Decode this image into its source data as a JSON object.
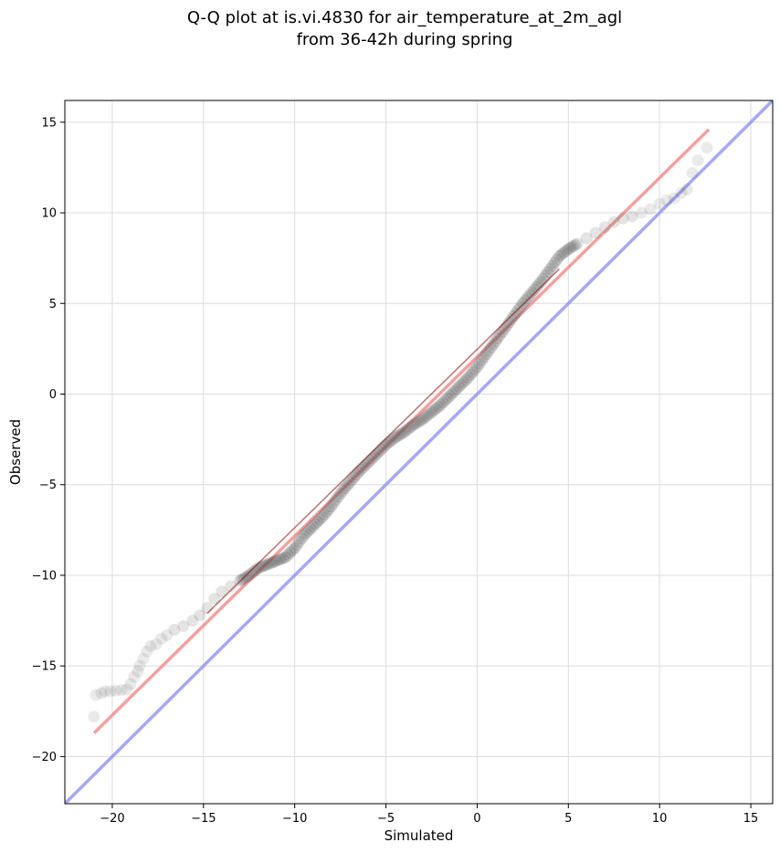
{
  "chart_data": {
    "type": "scatter",
    "title_line1": "Q-Q plot at is.vi.4830 for air_temperature_at_2m_agl",
    "title_line2": "from 36-42h during spring",
    "xlabel": "Simulated",
    "ylabel": "Observed",
    "xlim": [
      -22.6,
      16.2
    ],
    "ylim": [
      -22.6,
      16.2
    ],
    "xticks": [
      -20,
      -15,
      -10,
      -5,
      0,
      5,
      10,
      15
    ],
    "yticks": [
      -20,
      -15,
      -10,
      -5,
      0,
      5,
      10,
      15
    ],
    "xtick_labels": [
      "−20",
      "−15",
      "−10",
      "−5",
      "0",
      "5",
      "10",
      "15"
    ],
    "ytick_labels": [
      "−20",
      "−15",
      "−10",
      "−5",
      "0",
      "5",
      "10",
      "15"
    ],
    "grid": true,
    "colors": {
      "points": "#555555",
      "fit_line": "#f08080",
      "identity_line": "#8a8af0",
      "inner_line": "#8b0000"
    },
    "series": [
      {
        "kind": "quantile_points",
        "x": [
          -21.0,
          -20.9,
          -20.6,
          -20.4,
          -20.1,
          -19.2,
          -19.0,
          -18.8,
          -18.6,
          -18.5,
          -18.3,
          -18.1,
          -17.9,
          -17.6,
          -17.3,
          -17.0,
          -16.6,
          -16.1,
          -15.6,
          -15.2,
          -14.8,
          -14.4,
          -14.0,
          -13.5,
          -13.0,
          -12.5,
          -12.0,
          -11.5,
          -11.0,
          -10.5,
          -10.0,
          -9.5,
          -9.0,
          -8.5,
          -8.0,
          -7.5,
          -7.0,
          -6.5,
          -6.0,
          -5.5,
          -5.0,
          -4.5,
          -4.0,
          -3.5,
          -3.0,
          -2.5,
          -2.0,
          -1.5,
          -1.0,
          -0.5,
          0.0,
          0.5,
          1.0,
          1.5,
          2.0,
          2.5,
          3.0,
          3.5,
          4.0,
          4.5,
          5.0,
          5.5,
          6.0,
          6.5,
          7.0,
          7.5,
          8.0,
          8.5,
          9.0,
          9.5,
          10.0,
          10.4,
          10.8,
          11.2,
          11.5,
          11.8,
          12.1,
          12.6
        ],
        "y": [
          -17.8,
          -16.6,
          -16.5,
          -16.4,
          -16.4,
          -16.3,
          -16.0,
          -15.6,
          -15.3,
          -15.0,
          -14.6,
          -14.2,
          -13.9,
          -13.8,
          -13.5,
          -13.3,
          -13.0,
          -12.8,
          -12.5,
          -12.2,
          -11.8,
          -11.3,
          -10.9,
          -10.6,
          -10.3,
          -10.0,
          -9.6,
          -9.4,
          -9.2,
          -9.0,
          -8.5,
          -7.8,
          -7.3,
          -6.8,
          -6.2,
          -5.5,
          -4.9,
          -4.3,
          -3.8,
          -3.3,
          -2.8,
          -2.4,
          -2.1,
          -1.7,
          -1.4,
          -1.0,
          -0.6,
          -0.1,
          0.4,
          0.9,
          1.5,
          2.2,
          2.9,
          3.6,
          4.3,
          5.0,
          5.6,
          6.2,
          6.9,
          7.6,
          8.0,
          8.3,
          8.6,
          8.9,
          9.2,
          9.5,
          9.7,
          9.8,
          10.0,
          10.2,
          10.5,
          10.7,
          10.8,
          11.1,
          11.3,
          12.2,
          12.9,
          13.6
        ]
      },
      {
        "kind": "fit_line",
        "x": [
          -21.0,
          12.7
        ],
        "y": [
          -18.7,
          14.6
        ]
      },
      {
        "kind": "identity_line",
        "x": [
          -22.6,
          16.2
        ],
        "y": [
          -22.6,
          16.2
        ]
      }
    ]
  }
}
